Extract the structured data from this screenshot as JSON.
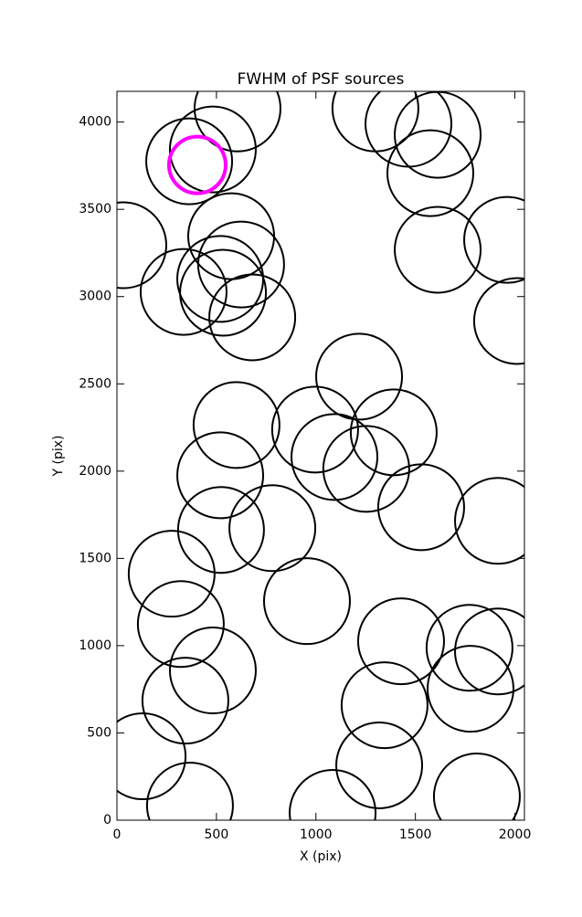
{
  "chart_data": {
    "type": "scatter",
    "title": "FWHM of PSF sources",
    "x_label": "X (pix)",
    "y_label": "Y (pix)",
    "xlim": [
      0,
      2048
    ],
    "ylim": [
      0,
      4176
    ],
    "xticks": [
      0,
      500,
      1000,
      1500,
      2000
    ],
    "yticks": [
      0,
      500,
      1000,
      1500,
      2000,
      2500,
      3000,
      3500,
      4000
    ],
    "series": [
      {
        "color": "#000000",
        "marker_size": 47,
        "line_width": 2,
        "x": [
          606,
          482,
          363,
          1299,
          1465,
          1612,
          1575,
          1961,
          1612,
          32,
          574,
          624,
          519,
          335,
          533,
          680,
          2011,
          1217,
          601,
          996,
          1391,
          1093,
          1253,
          519,
          1529,
          1915,
          523,
          781,
          275,
          955,
          321,
          1428,
          1772,
          1915,
          482,
          1777,
          344,
          1345,
          129,
          1318,
          367,
          1084,
          1809
        ],
        "values": [
          4078,
          3843,
          3775,
          4078,
          3990,
          3927,
          3707,
          3325,
          3268,
          3294,
          3346,
          3184,
          3101,
          3027,
          3022,
          2881,
          2860,
          2541,
          2264,
          2238,
          2222,
          2081,
          2013,
          1976,
          1793,
          1715,
          1663,
          1673,
          1412,
          1255,
          1124,
          1025,
          988,
          967,
          858,
          753,
          685,
          659,
          366,
          314,
          84,
          42,
          136
        ]
      },
      {
        "color": "#ff00ff",
        "marker_size": 31,
        "line_width": 4,
        "x": [
          404
        ],
        "values": [
          3754
        ]
      }
    ]
  }
}
